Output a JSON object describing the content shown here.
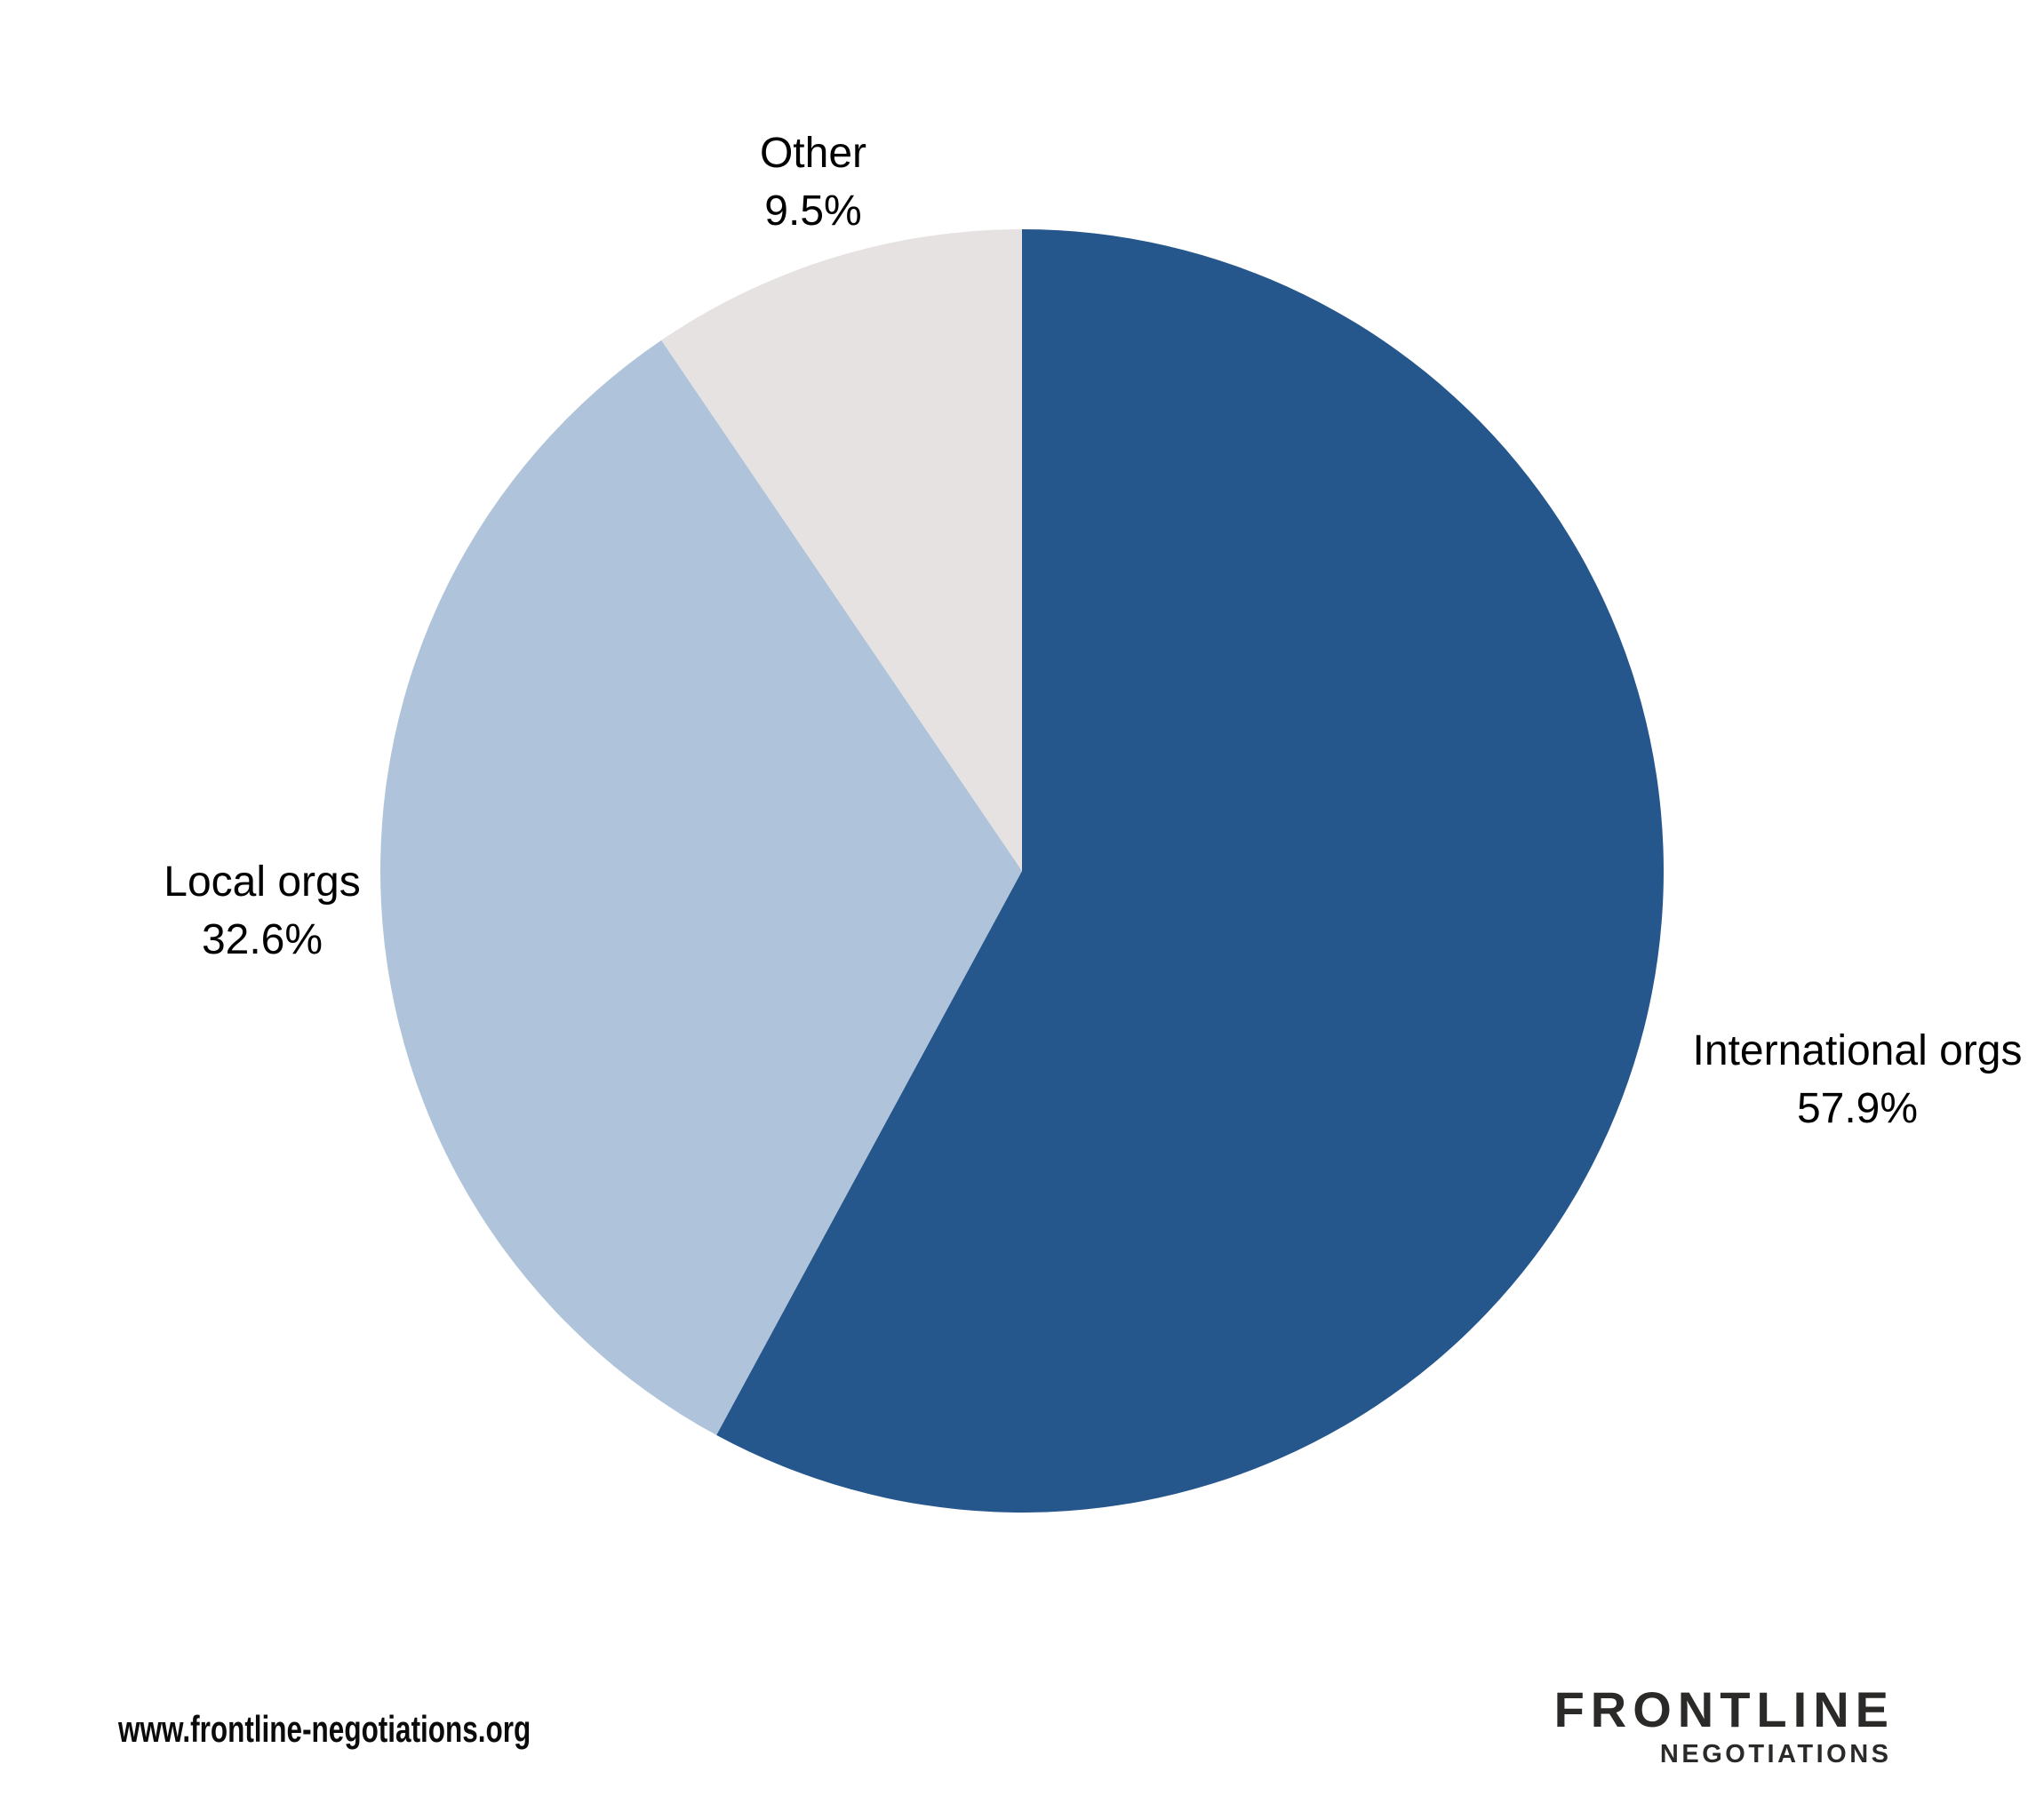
{
  "chart_data": {
    "type": "pie",
    "title": "",
    "legend_position": "none",
    "label_style": "outside, category name above percentage",
    "start_angle_deg": 0,
    "direction": "clockwise",
    "background_color": "#FFFFFF",
    "slices": [
      {
        "label": "International orgs",
        "value": 57.9,
        "pct_label": "57.9%",
        "color": "#25568C"
      },
      {
        "label": "Local orgs",
        "value": 32.6,
        "pct_label": "32.6%",
        "color": "#AFC3DA"
      },
      {
        "label": "Other",
        "value": 9.5,
        "pct_label": "9.5%",
        "color": "#E5E2E1"
      }
    ]
  },
  "footer": {
    "website": "www.frontline-negotiations.org",
    "logo": {
      "line1": "FRONTLINE",
      "line2": "NEGOTIATIONS",
      "color": "#2B2A28"
    }
  }
}
